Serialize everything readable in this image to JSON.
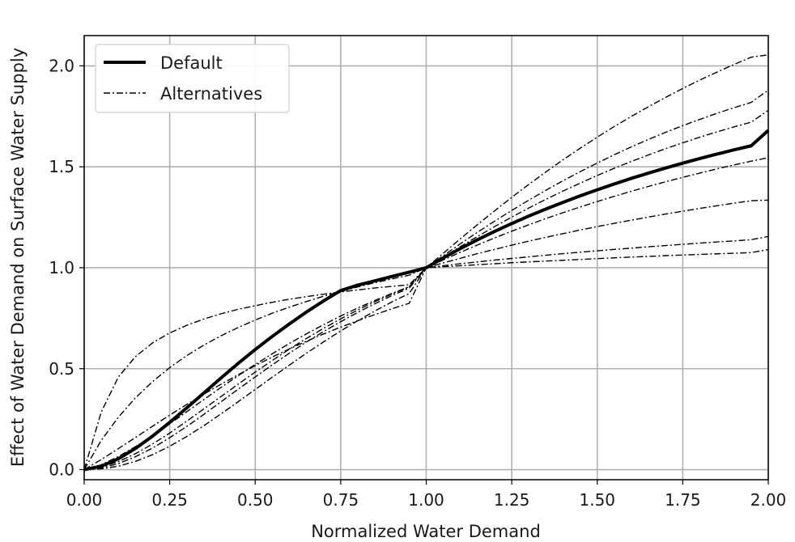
{
  "chart_data": {
    "type": "line",
    "xlabel": "Normalized Water Demand",
    "ylabel": "Effect of Water Demand on Surface Water Supply",
    "xlim": [
      0,
      2
    ],
    "ylim": [
      -0.05,
      2.15
    ],
    "grid": true,
    "legend_position": "top-left",
    "x_ticks": [
      "0.00",
      "0.25",
      "0.50",
      "0.75",
      "1.00",
      "1.25",
      "1.50",
      "1.75",
      "2.00"
    ],
    "y_ticks": [
      "0.0",
      "0.5",
      "1.0",
      "1.5",
      "2.0"
    ],
    "x": [
      0,
      0.05,
      0.1,
      0.15,
      0.2,
      0.25,
      0.3,
      0.35,
      0.4,
      0.45,
      0.5,
      0.55,
      0.6,
      0.65,
      0.7,
      0.75,
      0.8,
      0.85,
      0.9,
      0.95,
      1.0,
      1.05,
      1.1,
      1.15,
      1.2,
      1.25,
      1.3,
      1.35,
      1.4,
      1.45,
      1.5,
      1.55,
      1.6,
      1.65,
      1.7,
      1.75,
      1.8,
      1.85,
      1.9,
      1.95,
      2.0
    ],
    "legend": [
      {
        "label": "Default",
        "style": "solid"
      },
      {
        "label": "Alternatives",
        "style": "dashdot"
      }
    ],
    "series": [
      {
        "style": "solid",
        "width": "thick",
        "values": [
          0,
          0.017,
          0.054,
          0.105,
          0.166,
          0.234,
          0.306,
          0.38,
          0.454,
          0.526,
          0.595,
          0.66,
          0.722,
          0.781,
          0.836,
          0.887,
          0.914,
          0.935,
          0.957,
          0.978,
          1.0,
          1.049,
          1.095,
          1.139,
          1.18,
          1.219,
          1.256,
          1.291,
          1.324,
          1.356,
          1.386,
          1.415,
          1.443,
          1.469,
          1.494,
          1.518,
          1.541,
          1.563,
          1.584,
          1.604,
          1.68
        ]
      },
      {
        "style": "dashdot",
        "width": "thin",
        "values": [
          0,
          0.286,
          0.459,
          0.56,
          0.628,
          0.677,
          0.715,
          0.746,
          0.772,
          0.794,
          0.812,
          0.829,
          0.844,
          0.857,
          0.869,
          0.88,
          0.89,
          0.9,
          0.908,
          0.916,
          1.0,
          1.005,
          1.01,
          1.015,
          1.02,
          1.025,
          1.029,
          1.033,
          1.037,
          1.041,
          1.045,
          1.049,
          1.053,
          1.056,
          1.06,
          1.063,
          1.066,
          1.069,
          1.072,
          1.075,
          1.09
        ]
      },
      {
        "style": "dashdot",
        "width": "thin",
        "values": [
          0,
          0.145,
          0.26,
          0.356,
          0.436,
          0.505,
          0.565,
          0.617,
          0.663,
          0.704,
          0.741,
          0.775,
          0.805,
          0.833,
          0.859,
          0.883,
          0.905,
          0.926,
          0.945,
          0.963,
          1.0,
          1.01,
          1.02,
          1.029,
          1.038,
          1.046,
          1.054,
          1.062,
          1.07,
          1.077,
          1.084,
          1.091,
          1.097,
          1.104,
          1.11,
          1.116,
          1.122,
          1.128,
          1.133,
          1.139,
          1.155
        ]
      },
      {
        "style": "dashdot",
        "width": "thin",
        "values": [
          0,
          0.05,
          0.104,
          0.159,
          0.215,
          0.27,
          0.323,
          0.374,
          0.423,
          0.47,
          0.515,
          0.558,
          0.598,
          0.636,
          0.672,
          0.706,
          0.738,
          0.768,
          0.797,
          0.824,
          1.0,
          1.024,
          1.047,
          1.07,
          1.091,
          1.112,
          1.132,
          1.151,
          1.169,
          1.187,
          1.204,
          1.22,
          1.236,
          1.251,
          1.266,
          1.28,
          1.294,
          1.307,
          1.32,
          1.332,
          1.335
        ]
      },
      {
        "style": "dashdot",
        "width": "thin",
        "values": [
          0,
          0.024,
          0.065,
          0.114,
          0.169,
          0.227,
          0.287,
          0.347,
          0.407,
          0.465,
          0.521,
          0.574,
          0.625,
          0.673,
          0.718,
          0.761,
          0.801,
          0.838,
          0.873,
          0.906,
          1.0,
          1.039,
          1.077,
          1.113,
          1.148,
          1.181,
          1.213,
          1.244,
          1.273,
          1.301,
          1.328,
          1.354,
          1.379,
          1.403,
          1.426,
          1.448,
          1.469,
          1.49,
          1.509,
          1.528,
          1.545
        ]
      },
      {
        "style": "dashdot",
        "width": "thin",
        "values": [
          0,
          0.012,
          0.04,
          0.079,
          0.127,
          0.181,
          0.24,
          0.301,
          0.362,
          0.423,
          0.483,
          0.541,
          0.597,
          0.65,
          0.7,
          0.747,
          0.791,
          0.832,
          0.87,
          0.905,
          1.0,
          1.053,
          1.105,
          1.155,
          1.204,
          1.251,
          1.296,
          1.339,
          1.38,
          1.419,
          1.457,
          1.493,
          1.527,
          1.559,
          1.59,
          1.619,
          1.647,
          1.673,
          1.698,
          1.721,
          1.78
        ]
      },
      {
        "style": "dashdot",
        "width": "thin",
        "values": [
          0,
          0.008,
          0.03,
          0.064,
          0.107,
          0.158,
          0.214,
          0.274,
          0.336,
          0.398,
          0.459,
          0.519,
          0.577,
          0.632,
          0.684,
          0.733,
          0.779,
          0.822,
          0.862,
          0.899,
          1.0,
          1.06,
          1.119,
          1.176,
          1.231,
          1.284,
          1.335,
          1.384,
          1.431,
          1.476,
          1.519,
          1.56,
          1.599,
          1.636,
          1.671,
          1.704,
          1.735,
          1.765,
          1.793,
          1.819,
          1.88
        ]
      },
      {
        "style": "dashdot",
        "width": "thin",
        "values": [
          0,
          0.004,
          0.017,
          0.041,
          0.074,
          0.116,
          0.164,
          0.218,
          0.276,
          0.336,
          0.397,
          0.458,
          0.518,
          0.577,
          0.633,
          0.687,
          0.738,
          0.786,
          0.831,
          0.872,
          1.0,
          1.072,
          1.144,
          1.214,
          1.282,
          1.349,
          1.413,
          1.475,
          1.535,
          1.592,
          1.647,
          1.7,
          1.75,
          1.798,
          1.844,
          1.888,
          1.93,
          1.969,
          2.007,
          2.043,
          2.055
        ]
      }
    ]
  }
}
